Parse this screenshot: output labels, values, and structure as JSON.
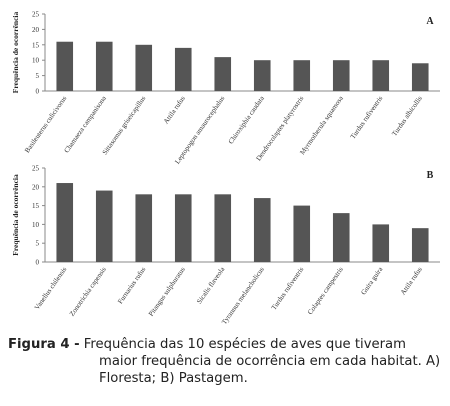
{
  "chart_data": [
    {
      "type": "bar",
      "panel": "A",
      "ylabel": "Frequência de ocorrência",
      "ylim": [
        0,
        25
      ],
      "yticks": [
        0,
        5,
        10,
        15,
        20,
        25
      ],
      "categories": [
        "Basileuterus culicivorus",
        "Chamaeza campanisona",
        "Sittasomus griseicapillus",
        "Attila rufus",
        "Leptopogon amaurocephalus",
        "Chiroxiphia caudata",
        "Dendrocolaptes platyrostris",
        "Myrmotherula squamosa",
        "Turdus rufiventris",
        "Turdus albicollis"
      ],
      "values": [
        16,
        16,
        15,
        14,
        11,
        10,
        10,
        10,
        10,
        9
      ],
      "bar_color": "#555555"
    },
    {
      "type": "bar",
      "panel": "B",
      "ylabel": "Frequência de ocorrência",
      "ylim": [
        0,
        25
      ],
      "yticks": [
        0,
        5,
        10,
        15,
        20,
        25
      ],
      "categories": [
        "Vanellus chilensis",
        "Zonotrichia capensis",
        "Furnarius rufus",
        "Pitangus sulphuratus",
        "Sicalis flaveola",
        "Tyrannus melancholicus",
        "Turdus rufiventris",
        "Colaptes campestris",
        "Guira guira",
        "Attila rufus"
      ],
      "values": [
        21,
        19,
        18,
        18,
        18,
        17,
        15,
        13,
        10,
        9
      ],
      "bar_color": "#555555"
    }
  ],
  "caption": {
    "label": "Figura 4 -",
    "line1": " Frequência das 10 espécies de aves que tiveram",
    "line2": "maior frequência de ocorrência em cada habitat. A)",
    "line3": "Floresta; B) Pastagem."
  }
}
